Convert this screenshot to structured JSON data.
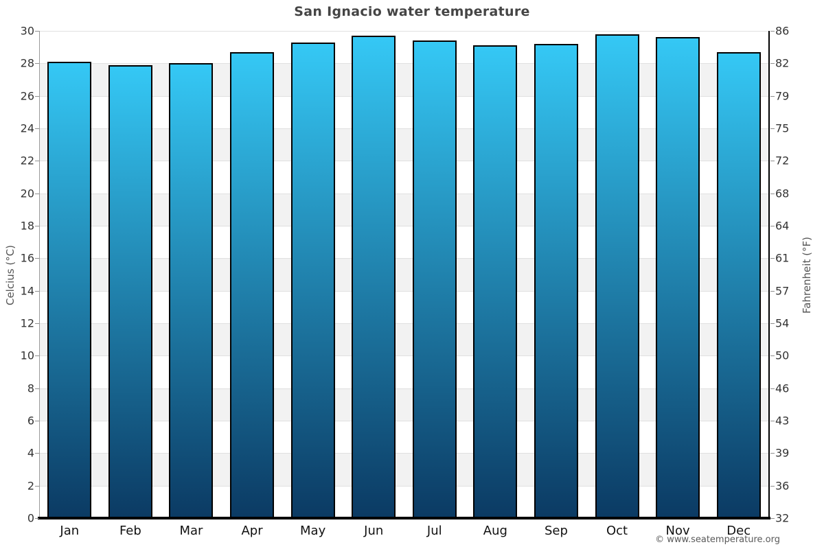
{
  "watermark": "© www.seatemperature.org",
  "chart_data": {
    "type": "bar",
    "title": "San Ignacio water temperature",
    "categories": [
      "Jan",
      "Feb",
      "Mar",
      "Apr",
      "May",
      "Jun",
      "Jul",
      "Aug",
      "Sep",
      "Oct",
      "Nov",
      "Dec"
    ],
    "values": [
      28.1,
      27.9,
      28.0,
      28.7,
      29.3,
      29.7,
      29.4,
      29.1,
      29.2,
      29.8,
      29.6,
      28.7
    ],
    "xlabel": "",
    "ylabel": "Celcius (°C)",
    "ylabel_right": "Fahrenheit (°F)",
    "ylim": [
      0,
      30
    ],
    "celsius_ticks": [
      30,
      28,
      26,
      24,
      22,
      20,
      18,
      16,
      14,
      12,
      10,
      8,
      6,
      4,
      2,
      0
    ],
    "fahrenheit_ticks": [
      "86",
      "82",
      "79",
      "75",
      "72",
      "68",
      "64",
      "61",
      "57",
      "54",
      "50",
      "46",
      "43",
      "39",
      "36",
      "32"
    ],
    "grid": "alternating horizontal bands every 2°C",
    "legend": "none",
    "colors": {
      "bar_gradient_top": "#35c8f5",
      "bar_gradient_bottom": "#0b3a63",
      "bar_border": "#000000",
      "band_gray": "#f2f2f2",
      "band_white": "#ffffff",
      "gridline": "#e0e0e0",
      "title_text": "#454545",
      "tick_text": "#333333",
      "axis_title_text": "#555555"
    }
  }
}
